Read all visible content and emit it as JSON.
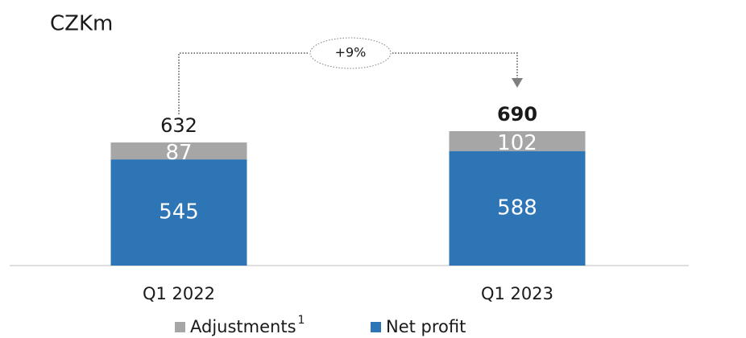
{
  "chart_data": {
    "type": "stacked_bar",
    "title": "CZKm",
    "categories": [
      "Q1 2022",
      "Q1 2023"
    ],
    "series": [
      {
        "name": "Net profit",
        "color": "#2e75b6",
        "values": [
          545,
          588
        ]
      },
      {
        "name": "Adjustments",
        "color": "#a6a6a6",
        "values": [
          87,
          102
        ]
      }
    ],
    "totals": [
      632,
      690
    ],
    "legend_footnote": "1",
    "annotation": "+9%"
  }
}
